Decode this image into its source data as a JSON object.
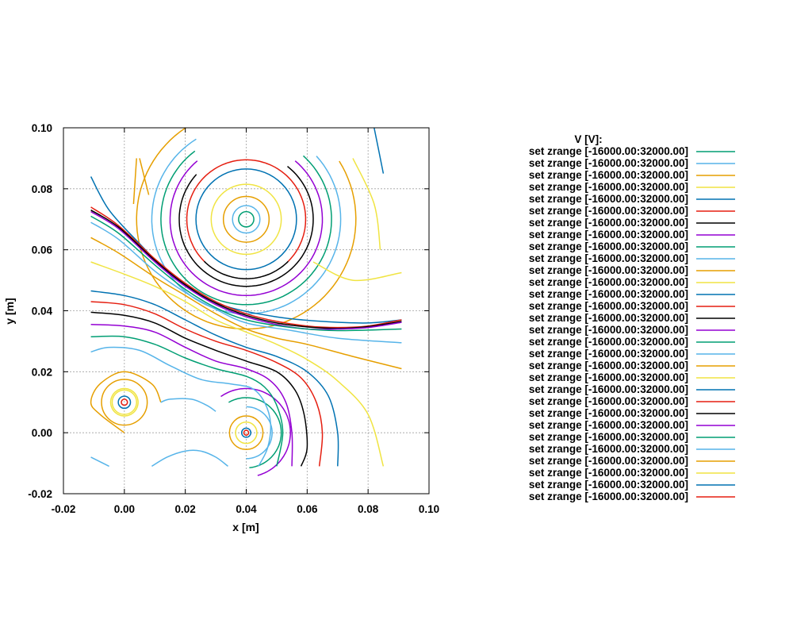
{
  "chart_data": {
    "type": "contour",
    "xlabel": "x [m]",
    "ylabel": "y [m]",
    "xlim": [
      -0.02,
      0.1
    ],
    "ylim": [
      -0.02,
      0.1
    ],
    "x_ticks": [
      "-0.02",
      "0.00",
      "0.02",
      "0.04",
      "0.06",
      "0.08",
      "0.10"
    ],
    "y_ticks": [
      "-0.02",
      "0.00",
      "0.02",
      "0.04",
      "0.06",
      "0.08",
      "0.10"
    ],
    "grid": true,
    "legend_position": "right",
    "legend_title": "V [V]:",
    "legend_entries": [
      "set zrange [-16000.00:32000.00]",
      "set zrange [-16000.00:32000.00]",
      "set zrange [-16000.00:32000.00]",
      "set zrange [-16000.00:32000.00]",
      "set zrange [-16000.00:32000.00]",
      "set zrange [-16000.00:32000.00]",
      "set zrange [-16000.00:32000.00]",
      "set zrange [-16000.00:32000.00]",
      "set zrange [-16000.00:32000.00]",
      "set zrange [-16000.00:32000.00]",
      "set zrange [-16000.00:32000.00]",
      "set zrange [-16000.00:32000.00]",
      "set zrange [-16000.00:32000.00]",
      "set zrange [-16000.00:32000.00]",
      "set zrange [-16000.00:32000.00]",
      "set zrange [-16000.00:32000.00]",
      "set zrange [-16000.00:32000.00]",
      "set zrange [-16000.00:32000.00]",
      "set zrange [-16000.00:32000.00]",
      "set zrange [-16000.00:32000.00]",
      "set zrange [-16000.00:32000.00]",
      "set zrange [-16000.00:32000.00]",
      "set zrange [-16000.00:32000.00]",
      "set zrange [-16000.00:32000.00]",
      "set zrange [-16000.00:32000.00]",
      "set zrange [-16000.00:32000.00]",
      "set zrange [-16000.00:32000.00]",
      "set zrange [-16000.00:32000.00]",
      "set zrange [-16000.00:32000.00]",
      "set zrange [-16000.00:32000.00]"
    ],
    "series_colors": [
      "#009e73",
      "#56b4e9",
      "#e69f00",
      "#f0e442",
      "#0072b2",
      "#e51e10",
      "#000000",
      "#9400d3"
    ],
    "circle_contours": [
      {
        "cx": 0.04,
        "cy": 0.07,
        "r": 0.0025,
        "color": "#009e73"
      },
      {
        "cx": 0.04,
        "cy": 0.07,
        "r": 0.0045,
        "color": "#56b4e9"
      },
      {
        "cx": 0.04,
        "cy": 0.07,
        "r": 0.0075,
        "color": "#e69f00"
      },
      {
        "cx": 0.04,
        "cy": 0.07,
        "r": 0.0115,
        "color": "#f0e442"
      },
      {
        "cx": 0.04,
        "cy": 0.07,
        "r": 0.0165,
        "color": "#0072b2"
      },
      {
        "cx": 0.0,
        "cy": 0.01,
        "r": 0.001,
        "color": "#e51e10"
      },
      {
        "cx": 0.0,
        "cy": 0.01,
        "r": 0.002,
        "color": "#0072b2"
      },
      {
        "cx": 0.0,
        "cy": 0.01,
        "r": 0.004,
        "color": "#f0e442"
      },
      {
        "cx": 0.0,
        "cy": 0.01,
        "r": 0.0075,
        "color": "#e69f00"
      },
      {
        "cx": 0.04,
        "cy": 0.0,
        "r": 0.0008,
        "color": "#e51e10"
      },
      {
        "cx": 0.04,
        "cy": 0.0,
        "r": 0.0015,
        "color": "#0072b2"
      },
      {
        "cx": 0.04,
        "cy": 0.0,
        "r": 0.0035,
        "color": "#f0e442"
      },
      {
        "cx": 0.04,
        "cy": 0.0,
        "r": 0.0055,
        "color": "#e69f00"
      }
    ],
    "arc_contours": [
      {
        "cx": 0.04,
        "cy": 0.07,
        "r": 0.0195,
        "start": 90,
        "end": 225,
        "color": "#e51e10"
      },
      {
        "cx": 0.04,
        "cy": 0.07,
        "r": 0.0195,
        "start": 225,
        "end": 315,
        "color": "#000000"
      },
      {
        "cx": 0.04,
        "cy": 0.07,
        "r": 0.0195,
        "start": 315,
        "end": 450,
        "color": "#e51e10"
      },
      {
        "cx": 0.04,
        "cy": 0.07,
        "r": 0.022,
        "start": 138,
        "end": 412,
        "color": "#000000"
      },
      {
        "cx": 0.04,
        "cy": 0.07,
        "r": 0.025,
        "start": 130,
        "end": 410,
        "color": "#9400d3"
      },
      {
        "cx": 0.04,
        "cy": 0.07,
        "r": 0.028,
        "start": 127,
        "end": 408,
        "color": "#009e73"
      },
      {
        "cx": 0.04,
        "cy": 0.07,
        "r": 0.031,
        "start": 122,
        "end": 402,
        "color": "#56b4e9"
      },
      {
        "cx": 0.04,
        "cy": 0.07,
        "r": 0.036,
        "start": 113,
        "end": 392,
        "color": "#e69f00"
      },
      {
        "cx": 0.04,
        "cy": 0.0,
        "r": 0.0085,
        "start": -90,
        "end": 90,
        "color": "#56b4e9"
      },
      {
        "cx": 0.04,
        "cy": 0.0,
        "r": 0.0115,
        "start": -85,
        "end": 120,
        "color": "#009e73"
      },
      {
        "cx": 0.04,
        "cy": 0.0,
        "r": 0.0145,
        "start": -75,
        "end": 125,
        "color": "#9400d3"
      },
      {
        "cx": 0.0,
        "cy": 0.01,
        "r": 0.0045,
        "start": 0,
        "end": 360,
        "color": "#f0e442"
      }
    ],
    "line_contours": [
      {
        "color": "#0072b2",
        "points": [
          [
            -0.011,
            0.084
          ],
          [
            -0.005,
            0.073
          ],
          [
            0.005,
            0.062
          ],
          [
            0.015,
            0.052
          ],
          [
            0.025,
            0.045
          ],
          [
            0.035,
            0.041
          ],
          [
            0.05,
            0.038
          ],
          [
            0.065,
            0.0365
          ],
          [
            0.08,
            0.036
          ],
          [
            0.091,
            0.037
          ]
        ]
      },
      {
        "color": "#e51e10",
        "points": [
          [
            -0.011,
            0.074
          ],
          [
            -0.002,
            0.068
          ],
          [
            0.01,
            0.057
          ],
          [
            0.02,
            0.049
          ],
          [
            0.03,
            0.043
          ],
          [
            0.04,
            0.039
          ],
          [
            0.05,
            0.0365
          ],
          [
            0.06,
            0.035
          ],
          [
            0.07,
            0.0345
          ],
          [
            0.08,
            0.035
          ],
          [
            0.091,
            0.037
          ]
        ]
      },
      {
        "color": "#000000",
        "points": [
          [
            -0.011,
            0.073
          ],
          [
            -0.002,
            0.0675
          ],
          [
            0.01,
            0.0565
          ],
          [
            0.02,
            0.0485
          ],
          [
            0.03,
            0.0425
          ],
          [
            0.04,
            0.0385
          ],
          [
            0.05,
            0.036
          ],
          [
            0.06,
            0.0347
          ],
          [
            0.07,
            0.0342
          ],
          [
            0.08,
            0.0348
          ],
          [
            0.091,
            0.0365
          ]
        ]
      },
      {
        "color": "#9400d3",
        "points": [
          [
            -0.011,
            0.0725
          ],
          [
            -0.002,
            0.067
          ],
          [
            0.01,
            0.056
          ],
          [
            0.02,
            0.048
          ],
          [
            0.03,
            0.042
          ],
          [
            0.04,
            0.038
          ],
          [
            0.05,
            0.0355
          ],
          [
            0.06,
            0.034
          ],
          [
            0.07,
            0.034
          ],
          [
            0.08,
            0.0345
          ],
          [
            0.091,
            0.0362
          ]
        ]
      },
      {
        "color": "#009e73",
        "points": [
          [
            -0.011,
            0.071
          ],
          [
            -0.002,
            0.0655
          ],
          [
            0.01,
            0.055
          ],
          [
            0.02,
            0.047
          ],
          [
            0.03,
            0.041
          ],
          [
            0.04,
            0.037
          ],
          [
            0.055,
            0.0345
          ],
          [
            0.07,
            0.0335
          ],
          [
            0.091,
            0.034
          ]
        ]
      },
      {
        "color": "#56b4e9",
        "points": [
          [
            -0.011,
            0.069
          ],
          [
            -0.002,
            0.0635
          ],
          [
            0.01,
            0.053
          ],
          [
            0.02,
            0.046
          ],
          [
            0.03,
            0.0405
          ],
          [
            0.04,
            0.036
          ],
          [
            0.055,
            0.0335
          ],
          [
            0.07,
            0.031
          ],
          [
            0.091,
            0.0295
          ]
        ]
      },
      {
        "color": "#e69f00",
        "points": [
          [
            -0.011,
            0.064
          ],
          [
            -0.002,
            0.059
          ],
          [
            0.01,
            0.051
          ],
          [
            0.02,
            0.045
          ],
          [
            0.03,
            0.039
          ],
          [
            0.04,
            0.034
          ],
          [
            0.05,
            0.031
          ],
          [
            0.06,
            0.029
          ],
          [
            0.075,
            0.025
          ],
          [
            0.091,
            0.021
          ]
        ]
      },
      {
        "color": "#f0e442",
        "points": [
          [
            -0.011,
            0.056
          ],
          [
            0.0,
            0.052
          ],
          [
            0.01,
            0.048
          ],
          [
            0.02,
            0.043
          ],
          [
            0.03,
            0.037
          ],
          [
            0.04,
            0.033
          ],
          [
            0.05,
            0.029
          ],
          [
            0.06,
            0.024
          ],
          [
            0.07,
            0.017
          ],
          [
            0.08,
            0.006
          ],
          [
            0.085,
            -0.011
          ]
        ]
      },
      {
        "color": "#0072b2",
        "points": [
          [
            -0.011,
            0.0465
          ],
          [
            0.0,
            0.045
          ],
          [
            0.01,
            0.042
          ],
          [
            0.02,
            0.037
          ],
          [
            0.03,
            0.032
          ],
          [
            0.04,
            0.028
          ],
          [
            0.05,
            0.025
          ],
          [
            0.06,
            0.02
          ],
          [
            0.067,
            0.012
          ],
          [
            0.07,
            0.0
          ],
          [
            0.07,
            -0.011
          ]
        ]
      },
      {
        "color": "#e51e10",
        "points": [
          [
            -0.011,
            0.043
          ],
          [
            0.0,
            0.042
          ],
          [
            0.01,
            0.039
          ],
          [
            0.02,
            0.034
          ],
          [
            0.03,
            0.03
          ],
          [
            0.04,
            0.027
          ],
          [
            0.05,
            0.023
          ],
          [
            0.058,
            0.018
          ],
          [
            0.063,
            0.01
          ],
          [
            0.065,
            0.0
          ],
          [
            0.064,
            -0.011
          ]
        ]
      },
      {
        "color": "#000000",
        "points": [
          [
            -0.011,
            0.0395
          ],
          [
            0.0,
            0.0385
          ],
          [
            0.01,
            0.036
          ],
          [
            0.02,
            0.031
          ],
          [
            0.03,
            0.027
          ],
          [
            0.04,
            0.0235
          ],
          [
            0.05,
            0.02
          ],
          [
            0.056,
            0.014
          ],
          [
            0.059,
            0.006
          ],
          [
            0.06,
            -0.005
          ],
          [
            0.058,
            -0.011
          ]
        ]
      },
      {
        "color": "#9400d3",
        "points": [
          [
            -0.011,
            0.0355
          ],
          [
            0.0,
            0.035
          ],
          [
            0.01,
            0.033
          ],
          [
            0.02,
            0.028
          ],
          [
            0.03,
            0.0235
          ],
          [
            0.04,
            0.021
          ],
          [
            0.048,
            0.017
          ],
          [
            0.053,
            0.01
          ],
          [
            0.055,
            0.0
          ],
          [
            0.055,
            -0.011
          ]
        ]
      },
      {
        "color": "#009e73",
        "points": [
          [
            -0.011,
            0.0315
          ],
          [
            0.0,
            0.0315
          ],
          [
            0.01,
            0.029
          ],
          [
            0.02,
            0.0245
          ],
          [
            0.03,
            0.021
          ],
          [
            0.04,
            0.0185
          ],
          [
            0.046,
            0.015
          ],
          [
            0.05,
            0.009
          ],
          [
            0.052,
            0.0
          ],
          [
            0.05,
            -0.011
          ]
        ]
      },
      {
        "color": "#56b4e9",
        "points": [
          [
            -0.011,
            0.0265
          ],
          [
            -0.005,
            0.028
          ],
          [
            0.005,
            0.027
          ],
          [
            0.015,
            0.022
          ],
          [
            0.025,
            0.0175
          ],
          [
            0.035,
            0.016
          ],
          [
            0.042,
            0.0145
          ],
          [
            0.046,
            0.01
          ],
          [
            0.048,
            0.003
          ],
          [
            0.047,
            -0.005
          ],
          [
            0.044,
            -0.011
          ]
        ]
      },
      {
        "color": "#56b4e9",
        "points": [
          [
            0.009,
            -0.011
          ],
          [
            0.014,
            -0.008
          ],
          [
            0.02,
            -0.006
          ],
          [
            0.025,
            -0.006
          ],
          [
            0.03,
            -0.008
          ],
          [
            0.034,
            -0.011
          ]
        ]
      },
      {
        "color": "#56b4e9",
        "points": [
          [
            -0.011,
            -0.008
          ],
          [
            -0.005,
            -0.011
          ]
        ]
      },
      {
        "color": "#e69f00",
        "points": [
          [
            0.0,
            0.0
          ],
          [
            -0.008,
            0.006
          ],
          [
            -0.011,
            0.01
          ],
          [
            -0.008,
            0.016
          ],
          [
            0.0,
            0.02
          ],
          [
            0.009,
            0.016
          ],
          [
            0.012,
            0.01
          ]
        ]
      },
      {
        "color": "#56b4e9",
        "points": [
          [
            0.012,
            0.01
          ],
          [
            0.015,
            0.011
          ],
          [
            0.022,
            0.011
          ],
          [
            0.027,
            0.009
          ],
          [
            0.03,
            0.007
          ]
        ]
      },
      {
        "color": "#0072b2",
        "points": [
          [
            0.082,
            0.1
          ],
          [
            0.085,
            0.085
          ]
        ]
      },
      {
        "color": "#e69f00",
        "points": [
          [
            0.005,
            0.09
          ],
          [
            0.008,
            0.078
          ]
        ]
      },
      {
        "color": "#f0e442",
        "points": [
          [
            0.075,
            0.09
          ],
          [
            0.082,
            0.075
          ],
          [
            0.084,
            0.06
          ]
        ]
      },
      {
        "color": "#f0e442",
        "points": [
          [
            0.062,
            0.056
          ],
          [
            0.075,
            0.05
          ],
          [
            0.091,
            0.0525
          ]
        ]
      },
      {
        "color": "#e69f00",
        "points": [
          [
            0.004,
            0.09
          ],
          [
            0.003,
            0.075
          ]
        ]
      }
    ]
  }
}
